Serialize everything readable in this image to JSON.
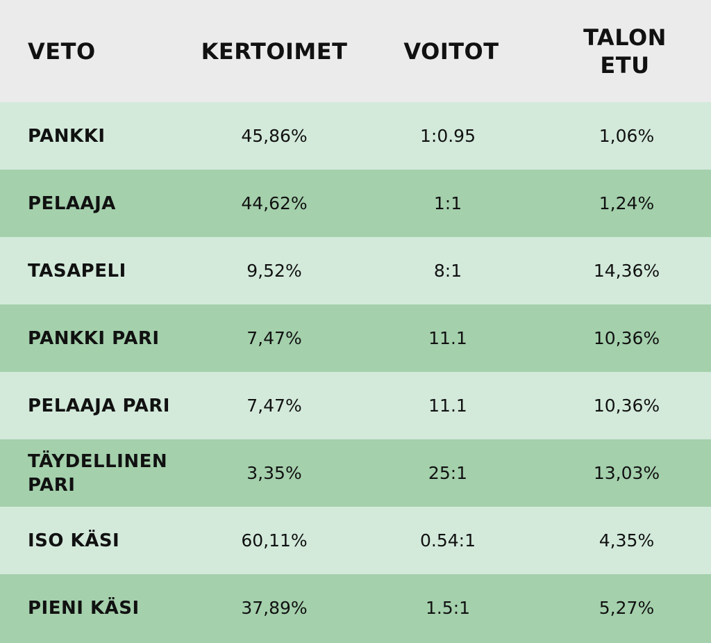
{
  "colors": {
    "header_bg": "#ebebeb",
    "row_light": "#d3eadb",
    "row_dark": "#a4d0ac",
    "text": "#111111"
  },
  "headers": [
    "VETO",
    "KERTOIMET",
    "VOITOT",
    "TALON ETU"
  ],
  "rows": [
    {
      "veto": "PANKKI",
      "kertoimet": "45,86%",
      "voitot": "1:0.95",
      "talon_etu": "1,06%"
    },
    {
      "veto": "PELAAJA",
      "kertoimet": "44,62%",
      "voitot": "1:1",
      "talon_etu": "1,24%"
    },
    {
      "veto": "TASAPELI",
      "kertoimet": "9,52%",
      "voitot": "8:1",
      "talon_etu": "14,36%"
    },
    {
      "veto": "PANKKI PARI",
      "kertoimet": "7,47%",
      "voitot": "11.1",
      "talon_etu": "10,36%"
    },
    {
      "veto": "PELAAJA PARI",
      "kertoimet": "7,47%",
      "voitot": "11.1",
      "talon_etu": "10,36%"
    },
    {
      "veto": "TÄYDELLINEN PARI",
      "kertoimet": "3,35%",
      "voitot": "25:1",
      "talon_etu": "13,03%"
    },
    {
      "veto": "ISO KÄSI",
      "kertoimet": "60,11%",
      "voitot": "0.54:1",
      "talon_etu": "4,35%"
    },
    {
      "veto": "PIENI KÄSI",
      "kertoimet": "37,89%",
      "voitot": "1.5:1",
      "talon_etu": "5,27%"
    }
  ]
}
